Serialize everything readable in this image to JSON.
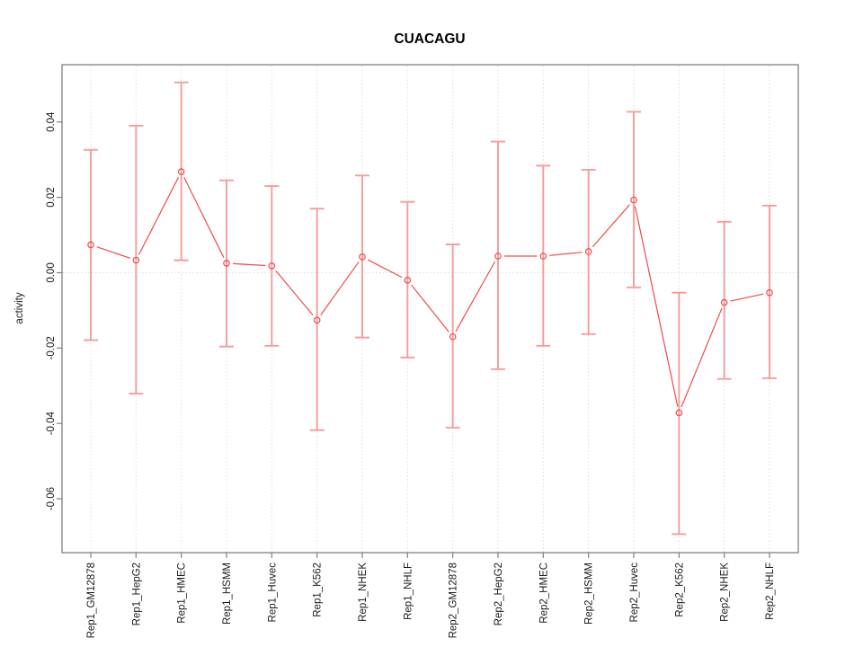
{
  "page": {
    "background": "#ffffff"
  },
  "chart_data": {
    "type": "line",
    "title": "CUACAGU",
    "xlabel": "",
    "ylabel": "activity",
    "legend": "none",
    "grid": {
      "vertical_dotted_per_category": true,
      "horizontal_dotted_zero_line": true
    },
    "categories": [
      "Rep1_GM12878",
      "Rep1_HepG2",
      "Rep1_HMEC",
      "Rep1_HSMM",
      "Rep1_Huvec",
      "Rep1_K562",
      "Rep1_NHEK",
      "Rep1_NHLF",
      "Rep2_GM12878",
      "Rep2_HepG2",
      "Rep2_HMEC",
      "Rep2_HSMM",
      "Rep2_Huvec",
      "Rep2_K562",
      "Rep2_NHEK",
      "Rep2_NHLF"
    ],
    "series": [
      {
        "name": "activity",
        "values": [
          0.0074,
          0.0033,
          0.0268,
          0.0025,
          0.0018,
          -0.0126,
          0.0042,
          -0.002,
          -0.017,
          0.0044,
          0.0044,
          0.0056,
          0.0193,
          -0.0372,
          -0.0079,
          -0.0053
        ],
        "upper": [
          0.0326,
          0.039,
          0.0505,
          0.0245,
          0.023,
          0.017,
          0.0258,
          0.0188,
          0.0075,
          0.0348,
          0.0284,
          0.0273,
          0.0427,
          -0.0053,
          0.0135,
          0.0178
        ],
        "lower": [
          -0.0179,
          -0.0321,
          0.0033,
          -0.0196,
          -0.0194,
          -0.0418,
          -0.0172,
          -0.0225,
          -0.0411,
          -0.0256,
          -0.0194,
          -0.0163,
          -0.0039,
          -0.0694,
          -0.0282,
          -0.028
        ]
      }
    ],
    "yticks": {
      "values": [
        0.04,
        0.02,
        0.0,
        -0.02,
        -0.04,
        -0.06
      ],
      "labels": [
        "0.04",
        "0.02",
        "0.00",
        "-0.02",
        "-0.04",
        "-0.06"
      ]
    },
    "ylim": [
      -0.0743,
      0.0552
    ],
    "colors": {
      "point_line": "#f04a4a",
      "error_bar": "#f79b9b",
      "grid": "#dcdcdc",
      "axis": "#7f7f7f",
      "tick_text": "#1a1a1a",
      "title": "#000000"
    }
  }
}
